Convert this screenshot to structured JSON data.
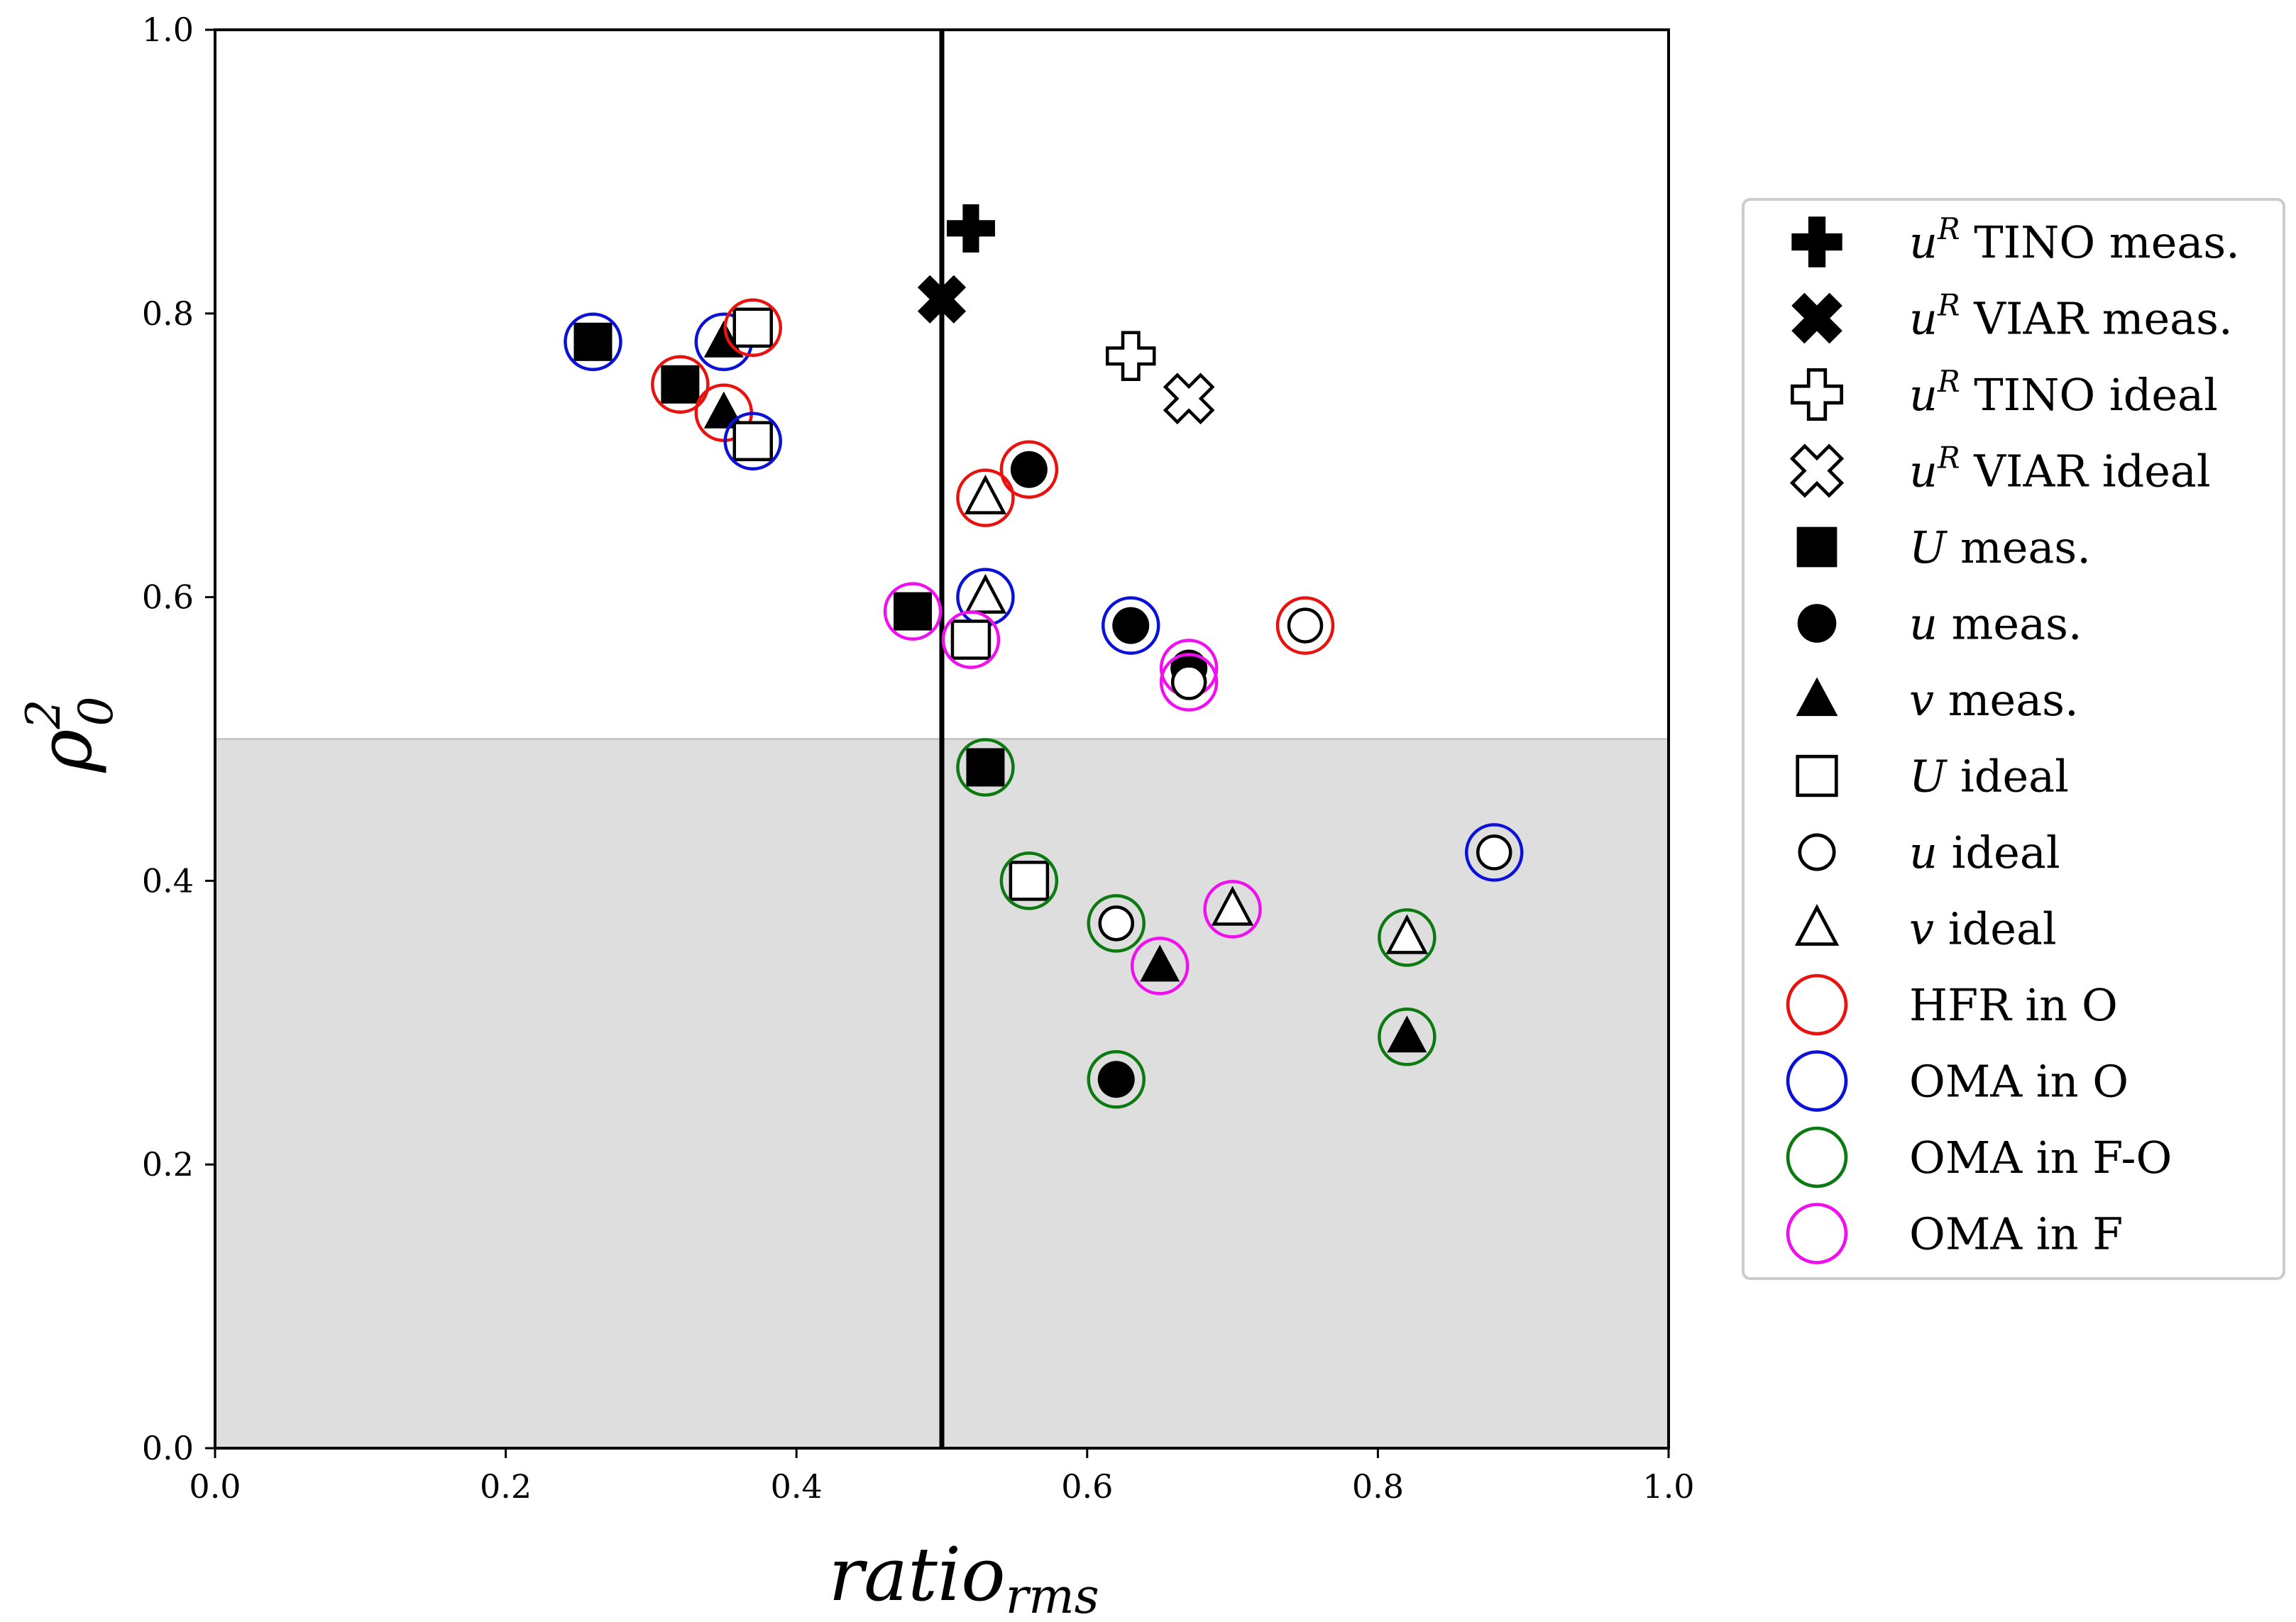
{
  "chart_data": {
    "type": "scatter",
    "xlabel": {
      "base": "ratio",
      "sub": "rms"
    },
    "ylabel": {
      "base": "ρ",
      "sup": "2",
      "sub": "0"
    },
    "xlim": [
      0,
      1
    ],
    "ylim": [
      0,
      1
    ],
    "x_ticks": [
      "0.0",
      "0.2",
      "0.4",
      "0.6",
      "0.8",
      "1.0"
    ],
    "y_ticks": [
      "0.0",
      "0.2",
      "0.4",
      "0.6",
      "0.8",
      "1.0"
    ],
    "vertical_line_x": 0.5,
    "shaded_region": {
      "y_from": 0,
      "y_to": 0.5,
      "color": "#dedede"
    },
    "colors": {
      "HFR_O": "#e8120f",
      "OMA_O": "#0b12d6",
      "OMA_FO": "#0c7a10",
      "OMA_F": "#ef10ef",
      "shade": "#dedede",
      "line": "#c8c8c8"
    },
    "legend": [
      {
        "marker": "plus-filled",
        "italic": "u",
        "sup": "R",
        "text": " TINO meas."
      },
      {
        "marker": "x-filled",
        "italic": "u",
        "sup": "R",
        "text": " VIAR meas."
      },
      {
        "marker": "plus-open",
        "italic": "u",
        "sup": "R",
        "text": " TINO ideal"
      },
      {
        "marker": "x-open",
        "italic": "u",
        "sup": "R",
        "text": " VIAR ideal"
      },
      {
        "marker": "square-filled",
        "italic": "U",
        "text": " meas."
      },
      {
        "marker": "circle-filled",
        "italic": "u",
        "text": " meas."
      },
      {
        "marker": "triangle-filled",
        "italic": "v",
        "text": " meas."
      },
      {
        "marker": "square-open",
        "italic": "U",
        "text": " ideal"
      },
      {
        "marker": "circle-open",
        "italic": "u",
        "text": " ideal"
      },
      {
        "marker": "triangle-open",
        "italic": "v",
        "text": " ideal"
      },
      {
        "marker": "ring-HFR_O",
        "text": "HFR in O"
      },
      {
        "marker": "ring-OMA_O",
        "text": "OMA in O"
      },
      {
        "marker": "ring-OMA_FO",
        "text": "OMA in F-O"
      },
      {
        "marker": "ring-OMA_F",
        "text": "OMA in F"
      }
    ],
    "points": [
      {
        "x": 0.52,
        "y": 0.86,
        "marker": "plus-filled"
      },
      {
        "x": 0.5,
        "y": 0.81,
        "marker": "x-filled"
      },
      {
        "x": 0.63,
        "y": 0.77,
        "marker": "plus-open"
      },
      {
        "x": 0.67,
        "y": 0.74,
        "marker": "x-open"
      },
      {
        "x": 0.26,
        "y": 0.78,
        "marker": "square-filled",
        "ring": "OMA_O"
      },
      {
        "x": 0.32,
        "y": 0.75,
        "marker": "square-filled",
        "ring": "HFR_O"
      },
      {
        "x": 0.35,
        "y": 0.78,
        "marker": "triangle-filled",
        "ring": "OMA_O"
      },
      {
        "x": 0.35,
        "y": 0.73,
        "marker": "triangle-filled",
        "ring": "HFR_O"
      },
      {
        "x": 0.37,
        "y": 0.79,
        "marker": "square-open",
        "ring": "HFR_O"
      },
      {
        "x": 0.37,
        "y": 0.71,
        "marker": "square-open",
        "ring": "OMA_O"
      },
      {
        "x": 0.56,
        "y": 0.69,
        "marker": "circle-filled",
        "ring": "HFR_O"
      },
      {
        "x": 0.53,
        "y": 0.67,
        "marker": "triangle-open",
        "ring": "HFR_O"
      },
      {
        "x": 0.53,
        "y": 0.6,
        "marker": "triangle-open",
        "ring": "OMA_O"
      },
      {
        "x": 0.48,
        "y": 0.59,
        "marker": "square-filled",
        "ring": "OMA_F"
      },
      {
        "x": 0.52,
        "y": 0.57,
        "marker": "square-open",
        "ring": "OMA_F"
      },
      {
        "x": 0.63,
        "y": 0.58,
        "marker": "circle-filled",
        "ring": "OMA_O"
      },
      {
        "x": 0.67,
        "y": 0.55,
        "marker": "circle-filled",
        "ring": "OMA_F"
      },
      {
        "x": 0.67,
        "y": 0.54,
        "marker": "circle-open",
        "ring": "OMA_F"
      },
      {
        "x": 0.75,
        "y": 0.58,
        "marker": "circle-open",
        "ring": "HFR_O"
      },
      {
        "x": 0.53,
        "y": 0.48,
        "marker": "square-filled",
        "ring": "OMA_FO"
      },
      {
        "x": 0.56,
        "y": 0.4,
        "marker": "square-open",
        "ring": "OMA_FO"
      },
      {
        "x": 0.62,
        "y": 0.37,
        "marker": "circle-open",
        "ring": "OMA_FO"
      },
      {
        "x": 0.65,
        "y": 0.34,
        "marker": "triangle-filled",
        "ring": "OMA_F"
      },
      {
        "x": 0.7,
        "y": 0.38,
        "marker": "triangle-open",
        "ring": "OMA_F"
      },
      {
        "x": 0.62,
        "y": 0.26,
        "marker": "circle-filled",
        "ring": "OMA_FO"
      },
      {
        "x": 0.82,
        "y": 0.36,
        "marker": "triangle-open",
        "ring": "OMA_FO"
      },
      {
        "x": 0.82,
        "y": 0.29,
        "marker": "triangle-filled",
        "ring": "OMA_FO"
      },
      {
        "x": 0.88,
        "y": 0.42,
        "marker": "circle-open",
        "ring": "OMA_O"
      }
    ]
  }
}
